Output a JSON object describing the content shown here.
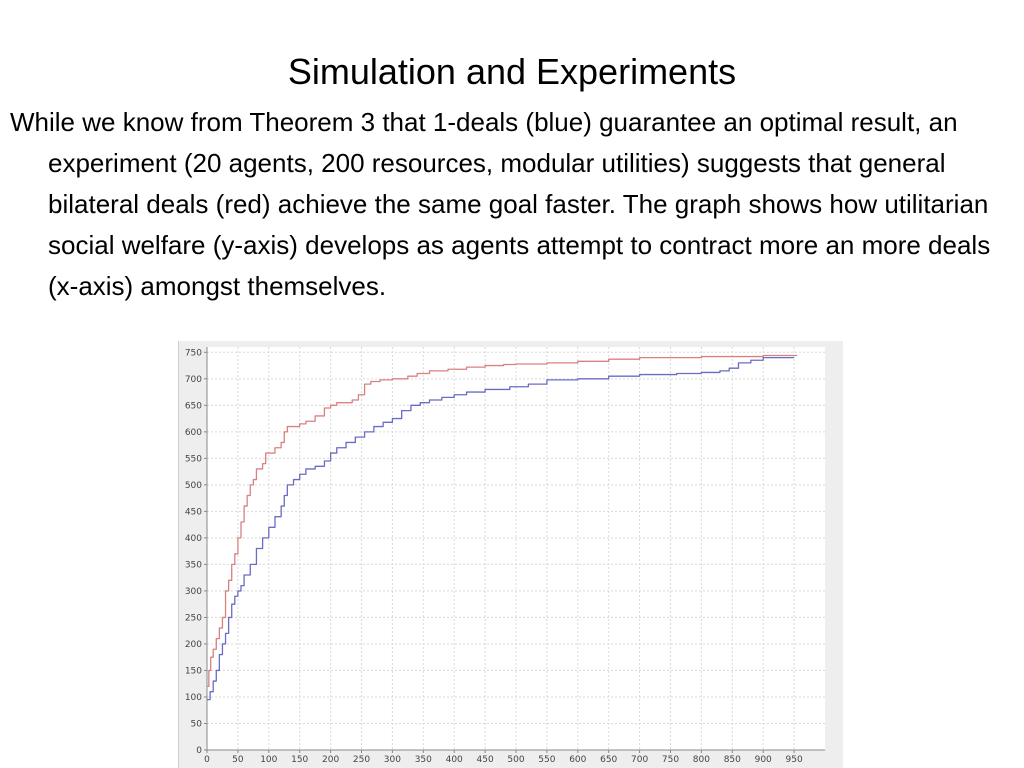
{
  "slide": {
    "title": "Simulation and Experiments",
    "body": "While we know from Theorem 3 that 1-deals (blue) guarantee an optimal result, an experiment (20 agents, 200 resources, modular utilities) suggests that general bilateral deals (red) achieve the same goal faster.  The graph shows how utilitarian social welfare (y-axis) develops as agents attempt to contract more an more deals (x-axis) amongst themselves."
  },
  "colors": {
    "general_deals": "#d98080",
    "one_deals": "#6b6bc4",
    "grid": "#d9d9d9",
    "plot_bg": "#ffffff",
    "frame_bg": "#eeeeee"
  },
  "chart_data": {
    "type": "line",
    "title": "",
    "xlabel": "",
    "ylabel": "",
    "xlim": [
      0,
      1000
    ],
    "ylim": [
      0,
      760
    ],
    "xticks": [
      0,
      50,
      100,
      150,
      200,
      250,
      300,
      350,
      400,
      450,
      500,
      550,
      600,
      650,
      700,
      750,
      800,
      850,
      900,
      950
    ],
    "yticks": [
      0,
      50,
      100,
      150,
      200,
      250,
      300,
      350,
      400,
      450,
      500,
      550,
      600,
      650,
      700,
      750
    ],
    "grid": true,
    "series": [
      {
        "color": "#d98080",
        "points": [
          [
            0,
            120
          ],
          [
            3,
            150
          ],
          [
            6,
            175
          ],
          [
            10,
            190
          ],
          [
            15,
            210
          ],
          [
            20,
            230
          ],
          [
            25,
            250
          ],
          [
            30,
            300
          ],
          [
            35,
            320
          ],
          [
            40,
            350
          ],
          [
            45,
            370
          ],
          [
            50,
            400
          ],
          [
            55,
            430
          ],
          [
            60,
            460
          ],
          [
            65,
            480
          ],
          [
            70,
            500
          ],
          [
            75,
            510
          ],
          [
            80,
            530
          ],
          [
            90,
            540
          ],
          [
            95,
            560
          ],
          [
            110,
            570
          ],
          [
            120,
            580
          ],
          [
            125,
            600
          ],
          [
            130,
            610
          ],
          [
            150,
            615
          ],
          [
            160,
            620
          ],
          [
            175,
            630
          ],
          [
            190,
            645
          ],
          [
            200,
            650
          ],
          [
            210,
            655
          ],
          [
            235,
            660
          ],
          [
            245,
            670
          ],
          [
            255,
            690
          ],
          [
            265,
            695
          ],
          [
            280,
            698
          ],
          [
            300,
            700
          ],
          [
            325,
            705
          ],
          [
            340,
            710
          ],
          [
            360,
            715
          ],
          [
            390,
            718
          ],
          [
            420,
            722
          ],
          [
            450,
            725
          ],
          [
            480,
            727
          ],
          [
            500,
            728
          ],
          [
            550,
            730
          ],
          [
            600,
            733
          ],
          [
            650,
            737
          ],
          [
            700,
            740
          ],
          [
            800,
            742
          ],
          [
            900,
            744
          ],
          [
            955,
            744
          ]
        ]
      },
      {
        "color": "#6b6bc4",
        "points": [
          [
            0,
            95
          ],
          [
            5,
            110
          ],
          [
            10,
            130
          ],
          [
            15,
            150
          ],
          [
            20,
            180
          ],
          [
            25,
            200
          ],
          [
            30,
            220
          ],
          [
            35,
            250
          ],
          [
            40,
            275
          ],
          [
            45,
            290
          ],
          [
            50,
            300
          ],
          [
            55,
            310
          ],
          [
            60,
            330
          ],
          [
            70,
            350
          ],
          [
            80,
            380
          ],
          [
            90,
            400
          ],
          [
            100,
            420
          ],
          [
            110,
            440
          ],
          [
            120,
            460
          ],
          [
            125,
            480
          ],
          [
            130,
            500
          ],
          [
            140,
            510
          ],
          [
            150,
            520
          ],
          [
            160,
            530
          ],
          [
            175,
            535
          ],
          [
            190,
            545
          ],
          [
            200,
            560
          ],
          [
            210,
            570
          ],
          [
            225,
            580
          ],
          [
            240,
            590
          ],
          [
            255,
            600
          ],
          [
            270,
            610
          ],
          [
            285,
            618
          ],
          [
            300,
            625
          ],
          [
            315,
            640
          ],
          [
            330,
            650
          ],
          [
            345,
            655
          ],
          [
            360,
            660
          ],
          [
            380,
            665
          ],
          [
            400,
            670
          ],
          [
            420,
            675
          ],
          [
            450,
            680
          ],
          [
            490,
            685
          ],
          [
            520,
            690
          ],
          [
            550,
            698
          ],
          [
            600,
            700
          ],
          [
            650,
            705
          ],
          [
            700,
            708
          ],
          [
            760,
            710
          ],
          [
            800,
            712
          ],
          [
            830,
            715
          ],
          [
            845,
            720
          ],
          [
            860,
            730
          ],
          [
            880,
            735
          ],
          [
            900,
            740
          ],
          [
            950,
            740
          ]
        ]
      }
    ]
  }
}
